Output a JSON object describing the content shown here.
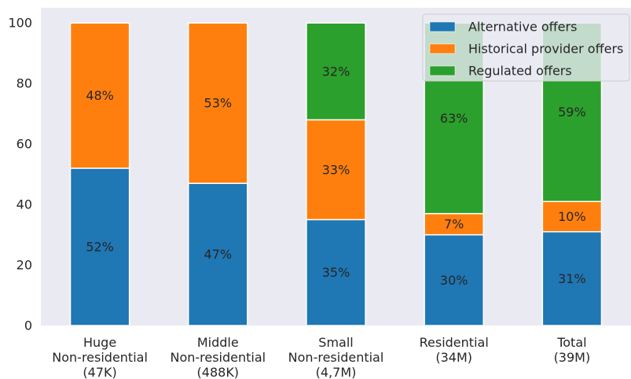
{
  "chart_data": {
    "type": "bar",
    "stacked": true,
    "categories": [
      [
        "Huge",
        "Non-residential",
        "(47K)"
      ],
      [
        "Middle",
        "Non-residential",
        "(488K)"
      ],
      [
        "Small",
        "Non-residential",
        "(4,7M)"
      ],
      [
        "Residential",
        "(34M)"
      ],
      [
        "Total",
        "(39M)"
      ]
    ],
    "series": [
      {
        "name": "Alternative offers",
        "color": "#1f77b4",
        "values": [
          52,
          47,
          35,
          30,
          31
        ],
        "labels": [
          "52%",
          "47%",
          "35%",
          "30%",
          "31%"
        ]
      },
      {
        "name": "Historical provider offers",
        "color": "#ff7f0e",
        "values": [
          48,
          53,
          33,
          7,
          10
        ],
        "labels": [
          "48%",
          "53%",
          "33%",
          "7%",
          "10%"
        ]
      },
      {
        "name": "Regulated offers",
        "color": "#2ca02c",
        "values": [
          0,
          0,
          32,
          63,
          59
        ],
        "labels": [
          "",
          "",
          "32%",
          "63%",
          "59%"
        ]
      }
    ],
    "ylim": [
      0,
      105
    ],
    "yticks": [
      0,
      20,
      40,
      60,
      80,
      100
    ],
    "grid": false,
    "legend_position": "top-right",
    "background": "#eaeaf2"
  }
}
